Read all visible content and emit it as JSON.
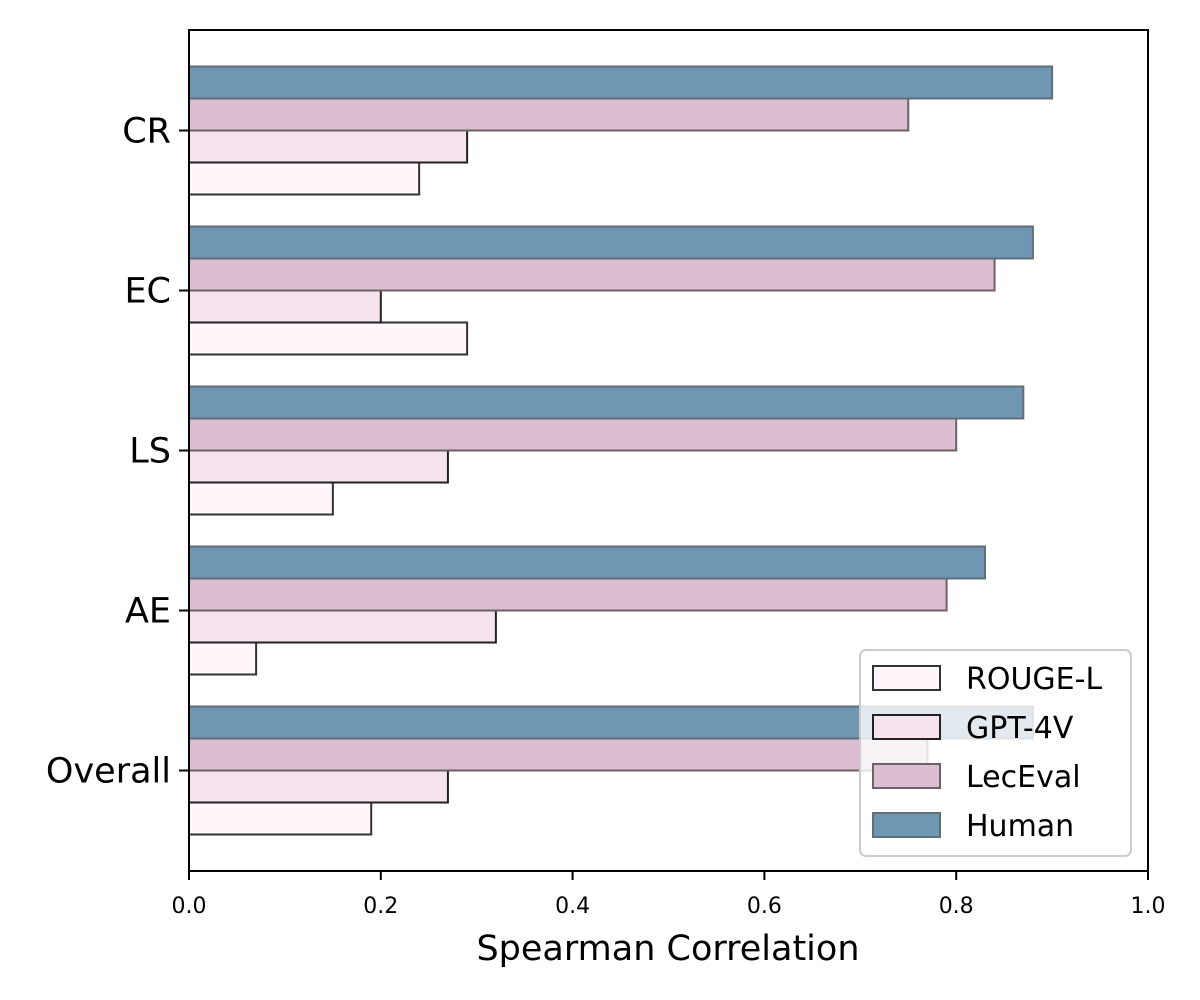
{
  "chart_data": {
    "type": "bar",
    "orientation": "horizontal",
    "categories": [
      "CR",
      "EC",
      "LS",
      "AE",
      "Overall"
    ],
    "series": [
      {
        "name": "ROUGE-L",
        "values": [
          0.24,
          0.29,
          0.15,
          0.07,
          0.19
        ],
        "color": "#fff7fb",
        "edge": "#333333"
      },
      {
        "name": "GPT-4V",
        "values": [
          0.29,
          0.2,
          0.27,
          0.32,
          0.27
        ],
        "color": "#f5e3ee",
        "edge": "#222222"
      },
      {
        "name": "LecEval",
        "values": [
          0.75,
          0.84,
          0.8,
          0.79,
          0.77
        ],
        "color": "#dbbfd1",
        "edge": "#6e6266"
      },
      {
        "name": "Human",
        "values": [
          0.9,
          0.88,
          0.87,
          0.83,
          0.88
        ],
        "color": "#7097b2",
        "edge": "#5f6e78"
      }
    ],
    "xlabel": "Spearman Correlation",
    "ylabel": "",
    "xlim": [
      0.0,
      1.0
    ],
    "xticks": [
      "0.0",
      "0.2",
      "0.4",
      "0.6",
      "0.8",
      "1.0"
    ],
    "grid": false,
    "legend_position": "bottom-right"
  }
}
